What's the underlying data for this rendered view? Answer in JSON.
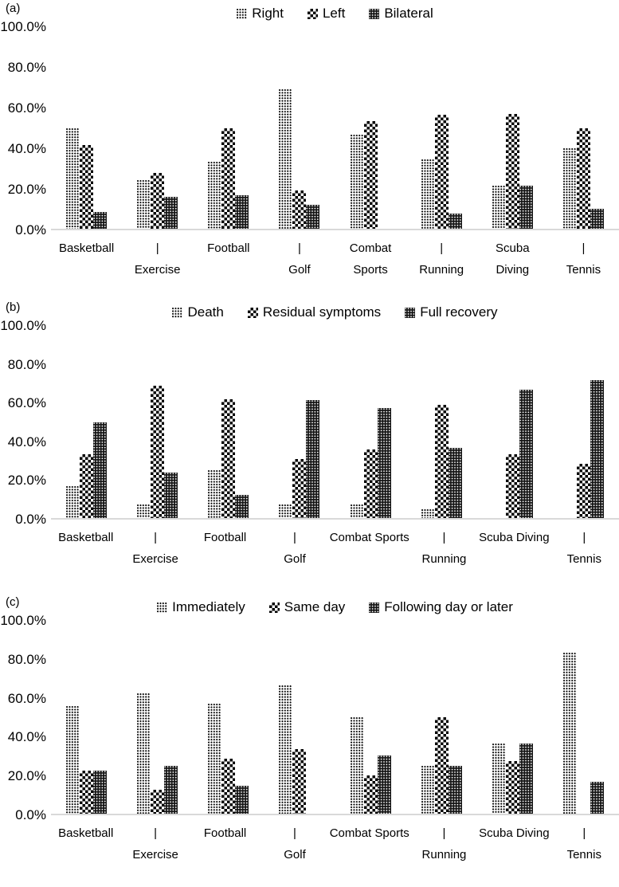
{
  "figure": {
    "background": "#ffffff",
    "text_color": "#000000",
    "axis_line_color": "#d9d9d9",
    "panels": [
      {
        "label": "(a)",
        "x_row1": [
          "Basketball",
          "|",
          "Football",
          "|",
          "Combat",
          "|",
          "Scuba",
          "|"
        ],
        "x_row2": [
          "",
          "Exercise",
          "",
          "Golf",
          "Sports",
          "Running",
          "Diving",
          "Tennis"
        ]
      },
      {
        "label": "(b)",
        "x_row1": [
          "Basketball",
          "|",
          "Football",
          "|",
          "Combat Sports",
          "|",
          "Scuba Diving",
          "|"
        ],
        "x_row2": [
          "",
          "Exercise",
          "",
          "Golf",
          "",
          "Running",
          "",
          "Tennis"
        ]
      },
      {
        "label": "(c)",
        "x_row1": [
          "Basketball",
          "|",
          "Football",
          "|",
          "Combat Sports",
          "|",
          "Scuba Diving",
          "|"
        ],
        "x_row2": [
          "",
          "Exercise",
          "",
          "Golf",
          "",
          "Running",
          "",
          "Tennis"
        ]
      }
    ]
  },
  "chart_data": [
    {
      "type": "bar",
      "panel": "(a)",
      "title": "",
      "xlabel": "",
      "ylabel": "",
      "categories": [
        "Basketball",
        "Exercise",
        "Football",
        "Golf",
        "Combat Sports",
        "Running",
        "Scuba Diving",
        "Tennis"
      ],
      "series": [
        {
          "name": "Right",
          "pattern": "light-dots",
          "values": [
            50.0,
            24.0,
            33.3,
            69.0,
            46.7,
            34.5,
            21.4,
            40.0
          ]
        },
        {
          "name": "Left",
          "pattern": "checkerboard",
          "values": [
            41.7,
            27.5,
            50.0,
            18.8,
            53.3,
            56.5,
            57.1,
            50.0
          ]
        },
        {
          "name": "Bilateral",
          "pattern": "dark-dots",
          "values": [
            8.3,
            16.0,
            16.7,
            12.0,
            0,
            7.5,
            21.4,
            10.0
          ]
        }
      ],
      "ylim": [
        0,
        100
      ],
      "y_tick_labels": [
        "100.0%",
        "80.0%",
        "60.0%",
        "40.0%",
        "20.0%",
        "0.0%"
      ],
      "grid": false,
      "legend_position": "top"
    },
    {
      "type": "bar",
      "panel": "(b)",
      "title": "",
      "xlabel": "",
      "ylabel": "",
      "categories": [
        "Basketball",
        "Exercise",
        "Football",
        "Golf",
        "Combat Sports",
        "Running",
        "Scuba Diving",
        "Tennis"
      ],
      "series": [
        {
          "name": "Death",
          "pattern": "light-dots",
          "values": [
            16.7,
            7.1,
            25.0,
            7.1,
            7.1,
            4.5,
            0,
            0
          ]
        },
        {
          "name": "Residual symptoms",
          "pattern": "checkerboard",
          "values": [
            33.3,
            69.0,
            62.0,
            30.8,
            35.7,
            59.1,
            33.3,
            28.3
          ]
        },
        {
          "name": "Full recovery",
          "pattern": "dark-dots",
          "values": [
            50.0,
            23.8,
            12.0,
            61.5,
            57.1,
            36.4,
            66.7,
            71.7
          ]
        }
      ],
      "ylim": [
        0,
        100
      ],
      "y_tick_labels": [
        "100.0%",
        "80.0%",
        "60.0%",
        "40.0%",
        "20.0%",
        "0.0%"
      ],
      "grid": false,
      "legend_position": "top"
    },
    {
      "type": "bar",
      "panel": "(c)",
      "title": "",
      "xlabel": "",
      "ylabel": "",
      "categories": [
        "Basketball",
        "Exercise",
        "Football",
        "Golf",
        "Combat Sports",
        "Running",
        "Scuba Diving",
        "Tennis"
      ],
      "series": [
        {
          "name": "Immediately",
          "pattern": "light-dots",
          "values": [
            55.6,
            62.5,
            57.1,
            66.7,
            50.0,
            25.0,
            36.4,
            83.3
          ]
        },
        {
          "name": "Same day",
          "pattern": "checkerboard",
          "values": [
            22.2,
            12.5,
            28.6,
            33.3,
            20.0,
            50.0,
            27.3,
            0
          ]
        },
        {
          "name": "Following day or later",
          "pattern": "dark-dots",
          "values": [
            22.2,
            25.0,
            14.3,
            0,
            30.0,
            25.0,
            36.4,
            16.7
          ]
        }
      ],
      "ylim": [
        0,
        100
      ],
      "y_tick_labels": [
        "100.0%",
        "80.0%",
        "60.0%",
        "40.0%",
        "20.0%",
        "0.0%"
      ],
      "grid": false,
      "legend_position": "top"
    }
  ]
}
